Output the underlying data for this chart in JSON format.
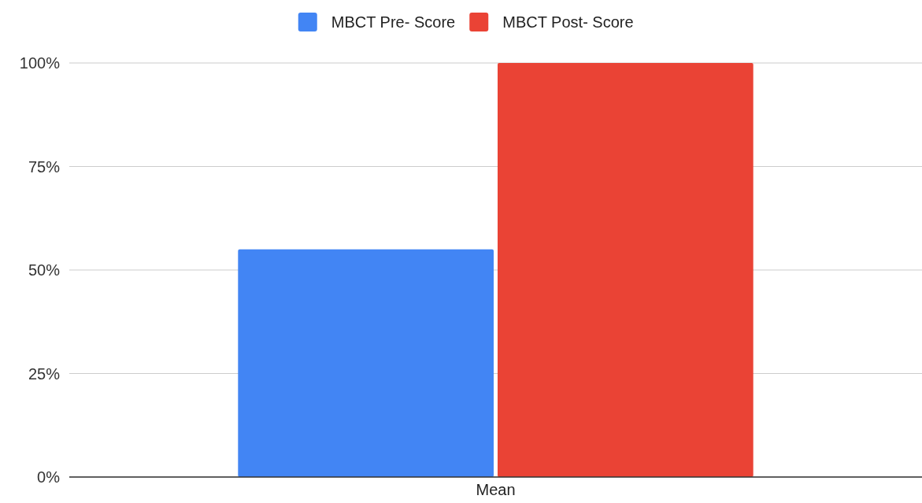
{
  "chart_data": {
    "type": "bar",
    "categories": [
      "Mean"
    ],
    "series": [
      {
        "name": "MBCT Pre- Score",
        "color": "#4285f4",
        "values": [
          55
        ]
      },
      {
        "name": "MBCT Post- Score",
        "color": "#ea4335",
        "values": [
          100
        ]
      }
    ],
    "ylim": [
      0,
      100
    ],
    "yticks": [
      {
        "value": 0,
        "label": "0%"
      },
      {
        "value": 25,
        "label": "25%"
      },
      {
        "value": 50,
        "label": "50%"
      },
      {
        "value": 75,
        "label": "75%"
      },
      {
        "value": 100,
        "label": "100%"
      }
    ],
    "grid": "y",
    "legend": "top"
  }
}
